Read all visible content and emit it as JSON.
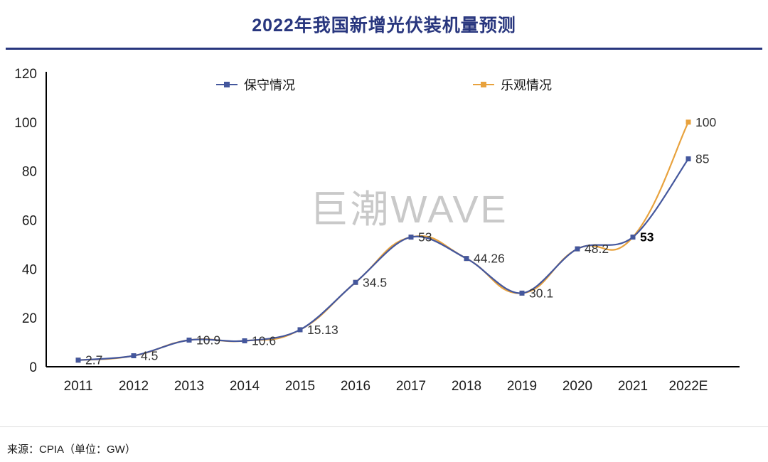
{
  "header": {
    "title": "2022年我国新增光伏装机量预测"
  },
  "watermark": "巨潮WAVE",
  "footer": {
    "source": "来源：CPIA（单位：GW）"
  },
  "chart_data": {
    "type": "line",
    "title": "2022年我国新增光伏装机量预测",
    "categories": [
      "2011",
      "2012",
      "2013",
      "2014",
      "2015",
      "2016",
      "2017",
      "2018",
      "2019",
      "2020",
      "2021",
      "2022E"
    ],
    "xlabel": "",
    "ylabel": "",
    "unit": "GW",
    "ylim": [
      0,
      120
    ],
    "yticks": [
      0,
      20,
      40,
      60,
      80,
      100,
      120
    ],
    "grid": false,
    "legend_position": "top",
    "series": [
      {
        "name": "保守情况",
        "color": "#44579d",
        "marker": "square",
        "values": [
          2.7,
          4.5,
          10.9,
          10.6,
          15.13,
          34.5,
          53,
          44.26,
          30.1,
          48.2,
          53,
          85
        ],
        "labels": [
          "2.7",
          "4.5",
          "10.9",
          "10.6",
          "15.13",
          "34.5",
          "53",
          "44.26",
          "30.1",
          "48.2",
          "53",
          "85"
        ],
        "bold_label_indices": [
          10
        ]
      },
      {
        "name": "乐观情况",
        "color": "#e8a23d",
        "marker": "square",
        "values": [
          2.7,
          4.5,
          10.9,
          10.6,
          15.13,
          34.5,
          53,
          44.26,
          30.1,
          48.2,
          53,
          100
        ],
        "labels": [
          null,
          null,
          null,
          null,
          null,
          null,
          null,
          null,
          null,
          null,
          null,
          "100"
        ],
        "bold_label_indices": []
      }
    ]
  }
}
